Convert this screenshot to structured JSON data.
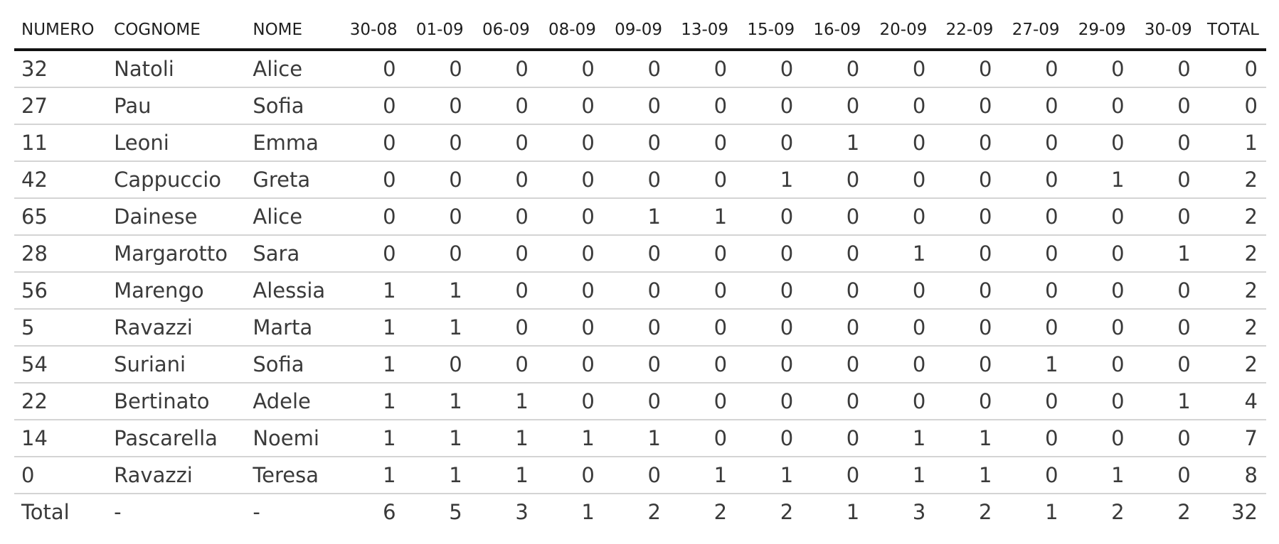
{
  "table": {
    "headers": [
      "NUMERO",
      "COGNOME",
      "NOME",
      "30-08",
      "01-09",
      "06-09",
      "08-09",
      "09-09",
      "13-09",
      "15-09",
      "16-09",
      "20-09",
      "22-09",
      "27-09",
      "29-09",
      "30-09",
      "TOTAL"
    ],
    "rows": [
      [
        "32",
        "Natoli",
        "Alice",
        "0",
        "0",
        "0",
        "0",
        "0",
        "0",
        "0",
        "0",
        "0",
        "0",
        "0",
        "0",
        "0",
        "0"
      ],
      [
        "27",
        "Pau",
        "Sofia",
        "0",
        "0",
        "0",
        "0",
        "0",
        "0",
        "0",
        "0",
        "0",
        "0",
        "0",
        "0",
        "0",
        "0"
      ],
      [
        "11",
        "Leoni",
        "Emma",
        "0",
        "0",
        "0",
        "0",
        "0",
        "0",
        "0",
        "1",
        "0",
        "0",
        "0",
        "0",
        "0",
        "1"
      ],
      [
        "42",
        "Cappuccio",
        "Greta",
        "0",
        "0",
        "0",
        "0",
        "0",
        "0",
        "1",
        "0",
        "0",
        "0",
        "0",
        "1",
        "0",
        "2"
      ],
      [
        "65",
        "Dainese",
        "Alice",
        "0",
        "0",
        "0",
        "0",
        "1",
        "1",
        "0",
        "0",
        "0",
        "0",
        "0",
        "0",
        "0",
        "2"
      ],
      [
        "28",
        "Margarotto",
        "Sara",
        "0",
        "0",
        "0",
        "0",
        "0",
        "0",
        "0",
        "0",
        "1",
        "0",
        "0",
        "0",
        "1",
        "2"
      ],
      [
        "56",
        "Marengo",
        "Alessia",
        "1",
        "1",
        "0",
        "0",
        "0",
        "0",
        "0",
        "0",
        "0",
        "0",
        "0",
        "0",
        "0",
        "2"
      ],
      [
        "5",
        "Ravazzi",
        "Marta",
        "1",
        "1",
        "0",
        "0",
        "0",
        "0",
        "0",
        "0",
        "0",
        "0",
        "0",
        "0",
        "0",
        "2"
      ],
      [
        "54",
        "Suriani",
        "Sofia",
        "1",
        "0",
        "0",
        "0",
        "0",
        "0",
        "0",
        "0",
        "0",
        "0",
        "1",
        "0",
        "0",
        "2"
      ],
      [
        "22",
        "Bertinato",
        "Adele",
        "1",
        "1",
        "1",
        "0",
        "0",
        "0",
        "0",
        "0",
        "0",
        "0",
        "0",
        "0",
        "1",
        "4"
      ],
      [
        "14",
        "Pascarella",
        "Noemi",
        "1",
        "1",
        "1",
        "1",
        "1",
        "0",
        "0",
        "0",
        "1",
        "1",
        "0",
        "0",
        "0",
        "7"
      ],
      [
        "0",
        "Ravazzi",
        "Teresa",
        "1",
        "1",
        "1",
        "0",
        "0",
        "1",
        "1",
        "0",
        "1",
        "1",
        "0",
        "1",
        "0",
        "8"
      ]
    ],
    "total_row": [
      "Total",
      "-",
      "-",
      "6",
      "5",
      "3",
      "1",
      "2",
      "2",
      "2",
      "1",
      "3",
      "2",
      "1",
      "2",
      "2",
      "32"
    ]
  }
}
